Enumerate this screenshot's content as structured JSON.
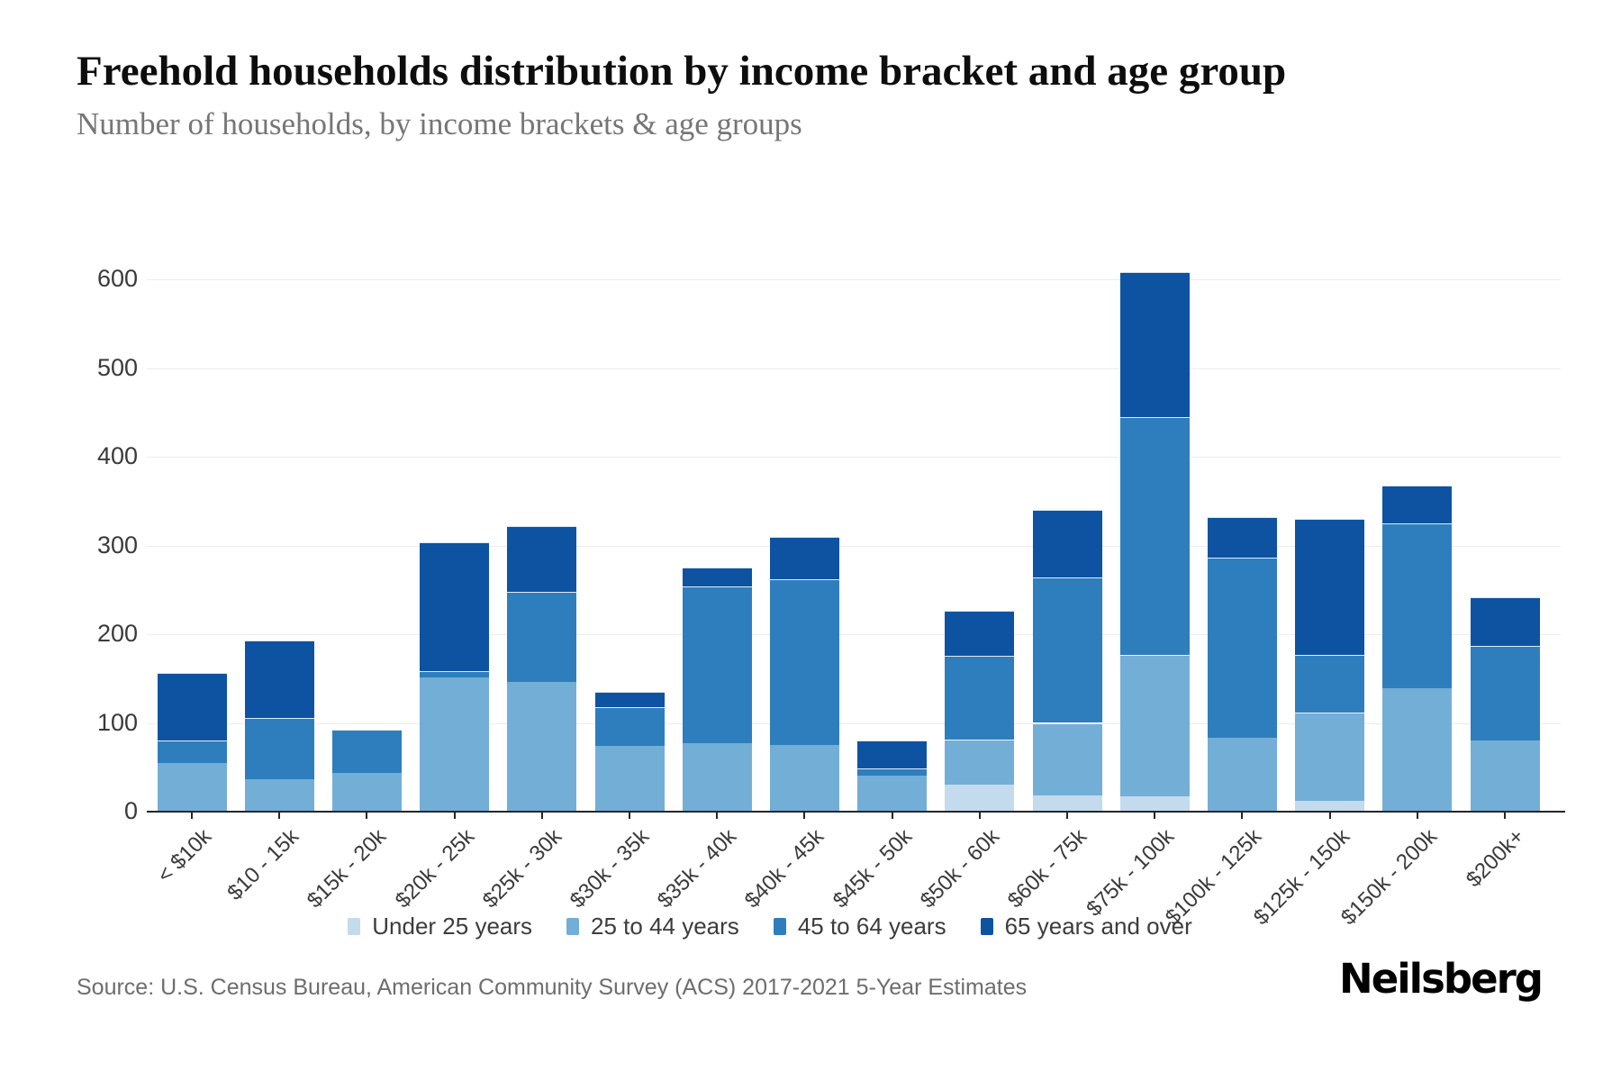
{
  "header": {
    "title": "Freehold households distribution by income bracket and age group",
    "subtitle": "Number of households, by income brackets & age groups"
  },
  "chart_data": {
    "type": "bar",
    "stacked": true,
    "title": "Freehold households distribution by income bracket and age group",
    "subtitle": "Number of households, by income brackets & age groups",
    "xlabel": "",
    "ylabel": "Number of households",
    "categories": [
      "< $10k",
      "$10 - 15k",
      "$15k - 20k",
      "$20k - 25k",
      "$25k - 30k",
      "$30k - 35k",
      "$35k - 40k",
      "$40k - 45k",
      "$45k - 50k",
      "$50k - 60k",
      "$60k - 75k",
      "$75k - 100k",
      "$100k - 125k",
      "$125k - 150k",
      "$150k - 200k",
      "$200k+"
    ],
    "series": [
      {
        "name": "Under 25 years",
        "color": "#c4daed",
        "values": [
          0,
          0,
          0,
          0,
          0,
          0,
          0,
          0,
          0,
          30,
          18,
          17,
          0,
          12,
          0,
          0
        ]
      },
      {
        "name": "25 to 44 years",
        "color": "#73aed7",
        "values": [
          55,
          37,
          44,
          151,
          146,
          74,
          77,
          75,
          41,
          51,
          82,
          160,
          83,
          100,
          139,
          80
        ]
      },
      {
        "name": "45 to 64 years",
        "color": "#2e7ebd",
        "values": [
          25,
          69,
          48,
          7,
          102,
          44,
          177,
          187,
          8,
          95,
          164,
          268,
          203,
          65,
          186,
          107
        ]
      },
      {
        "name": "65 years and over",
        "color": "#0d53a1",
        "values": [
          76,
          87,
          0,
          146,
          74,
          17,
          21,
          48,
          31,
          50,
          76,
          163,
          46,
          153,
          43,
          55
        ]
      }
    ],
    "totals": [
      156,
      193,
      92,
      304,
      322,
      135,
      275,
      310,
      80,
      226,
      340,
      608,
      332,
      330,
      368,
      242
    ],
    "y_axis": {
      "min": 0,
      "max": 600,
      "tick_step": 100,
      "ticks": [
        0,
        100,
        200,
        300,
        400,
        500,
        600
      ]
    },
    "grid": true,
    "legend_position": "bottom"
  },
  "footer": {
    "source": "Source: U.S. Census Bureau, American Community Survey (ACS) 2017-2021 5-Year Estimates",
    "logo": "Neilsberg"
  }
}
